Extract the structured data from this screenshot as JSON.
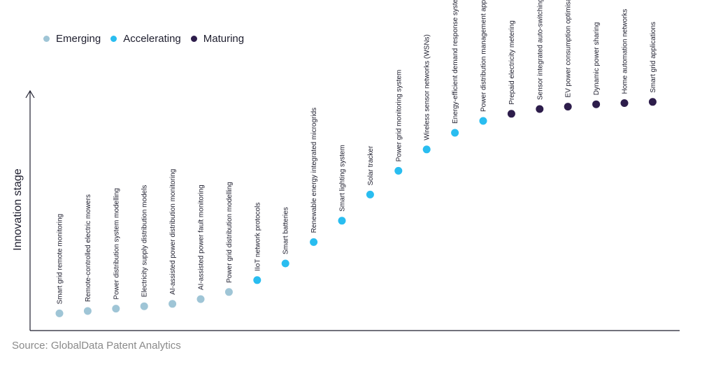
{
  "colors": {
    "emerging": "#9fc5d6",
    "accelerating": "#29bdf0",
    "maturing": "#2d1d4b",
    "axis": "#1e1e2e",
    "label": "#1e1e2e",
    "source": "#8a8a8a"
  },
  "legend": [
    {
      "key": "emerging",
      "label": "Emerging"
    },
    {
      "key": "accelerating",
      "label": "Accelerating"
    },
    {
      "key": "maturing",
      "label": "Maturing"
    }
  ],
  "source": "Source: GlobalData Patent Analytics",
  "chart_data": {
    "type": "scatter",
    "title": "",
    "xlabel": "",
    "ylabel": "Innovation stage",
    "ylim": [
      0,
      100
    ],
    "grid": false,
    "legend_position": "top-left",
    "points": [
      {
        "label": "Smart grid remote monitoring",
        "stage": "emerging",
        "value": 4
      },
      {
        "label": "Remote-controlled electric mowers",
        "stage": "emerging",
        "value": 5
      },
      {
        "label": "Power distribution system modelling",
        "stage": "emerging",
        "value": 6
      },
      {
        "label": "Electricity supply distribution models",
        "stage": "emerging",
        "value": 7
      },
      {
        "label": "AI-assisted power distribution monitoring",
        "stage": "emerging",
        "value": 8
      },
      {
        "label": "AI-assisted power fault monitoring",
        "stage": "emerging",
        "value": 10
      },
      {
        "label": "Power grid distribution modelling",
        "stage": "emerging",
        "value": 13
      },
      {
        "label": "IIoT network protocols",
        "stage": "accelerating",
        "value": 18
      },
      {
        "label": "Smart batteries",
        "stage": "accelerating",
        "value": 25
      },
      {
        "label": "Renewable energy integrated microgrids",
        "stage": "accelerating",
        "value": 34
      },
      {
        "label": "Smart lighting system",
        "stage": "accelerating",
        "value": 43
      },
      {
        "label": "Solar tracker",
        "stage": "accelerating",
        "value": 54
      },
      {
        "label": "Power grid monitoring system",
        "stage": "accelerating",
        "value": 64
      },
      {
        "label": "Wireless sensor networks (WSNs)",
        "stage": "accelerating",
        "value": 73
      },
      {
        "label": "Energy-efficient demand response systems",
        "stage": "accelerating",
        "value": 80
      },
      {
        "label": "Power distribution management applications",
        "stage": "accelerating",
        "value": 85
      },
      {
        "label": "Prepaid electricity metering",
        "stage": "maturing",
        "value": 88
      },
      {
        "label": "Sensor integrated auto-switching couplers",
        "stage": "maturing",
        "value": 90
      },
      {
        "label": "EV power consumption optimisation",
        "stage": "maturing",
        "value": 91
      },
      {
        "label": "Dynamic power sharing",
        "stage": "maturing",
        "value": 92
      },
      {
        "label": "Home automation networks",
        "stage": "maturing",
        "value": 92.5
      },
      {
        "label": "Smart grid applications",
        "stage": "maturing",
        "value": 93
      }
    ]
  }
}
